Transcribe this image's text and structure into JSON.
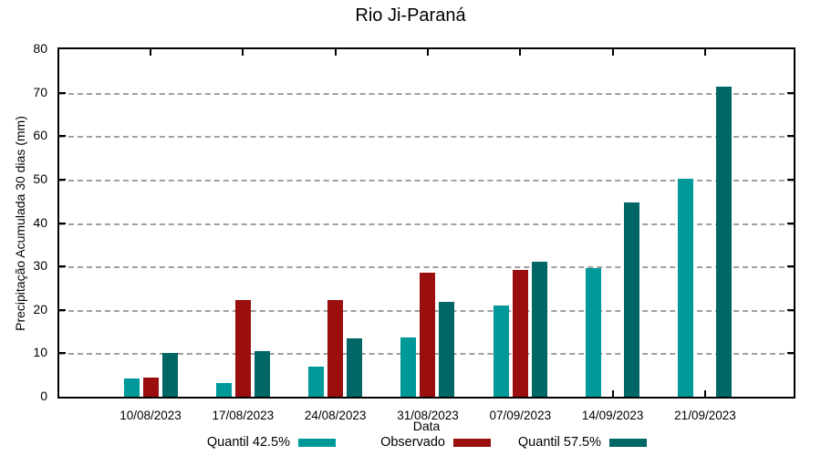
{
  "chart_data": {
    "type": "bar",
    "title": "Rio Ji-Paraná",
    "xlabel": "Data",
    "ylabel": "Precipitação Acumulada 30 dias (mm)",
    "ylim": [
      0,
      80
    ],
    "ytick_step": 10,
    "grid": true,
    "legend_position": "bottom-center",
    "categories": [
      "10/08/2023",
      "17/08/2023",
      "24/08/2023",
      "31/08/2023",
      "07/09/2023",
      "14/09/2023",
      "21/09/2023"
    ],
    "series": [
      {
        "name": "Quantil 42.5%",
        "color": "#009999",
        "values": [
          4.2,
          3.2,
          6.9,
          13.6,
          20.9,
          29.6,
          50.1
        ]
      },
      {
        "name": "Observado",
        "color": "#9A0E0E",
        "values": [
          4.4,
          22.2,
          22.2,
          28.6,
          29.2,
          null,
          null
        ]
      },
      {
        "name": "Quantil 57.5%",
        "color": "#006666",
        "values": [
          10.0,
          10.4,
          13.5,
          21.8,
          31.1,
          44.8,
          71.3
        ]
      }
    ],
    "colors": {
      "axis": "#000000",
      "gridline": "#a0a0a0",
      "background": "#ffffff"
    }
  }
}
